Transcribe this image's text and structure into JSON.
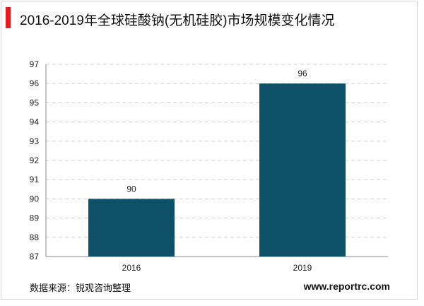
{
  "title": "2016-2019年全球硅酸钠(无机硅胶)市场规模变化情况",
  "source_text": "数据来源：锐观咨询整理",
  "website": "www.reportrc.com",
  "colors": {
    "bar": "#0e5067",
    "title_accent": "#e21f1f",
    "grid": "#d0d0d0"
  },
  "chart_data": {
    "type": "bar",
    "title": "2016-2019年全球硅酸钠(无机硅胶)市场规模变化情况",
    "categories": [
      "2016",
      "2019"
    ],
    "values": [
      90,
      96
    ],
    "data_labels": [
      "90",
      "96"
    ],
    "xlabel": "",
    "ylabel": "",
    "ylim": [
      87,
      97
    ],
    "yticks": [
      87,
      88,
      89,
      90,
      91,
      92,
      93,
      94,
      95,
      96,
      97
    ],
    "grid": true,
    "legend": "none"
  }
}
